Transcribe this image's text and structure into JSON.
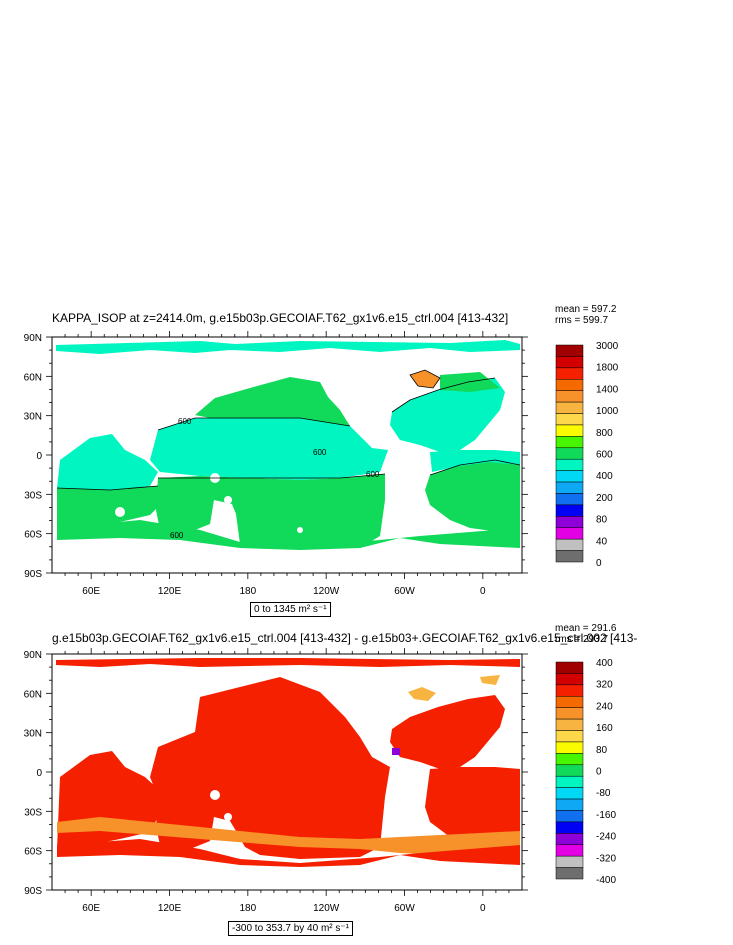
{
  "chart_data": [
    {
      "type": "heatmap",
      "title": "KAPPA_ISOP at z=2414.0m, g.e15b03p.GECOIAF.T62_gx1v6.e15_ctrl.004 [413-432]",
      "stats": {
        "mean": "mean = 597.2",
        "rms": "rms = 599.7"
      },
      "range_label": "0 to 1345 m² s⁻¹",
      "y_ticks": [
        "90N",
        "60N",
        "30N",
        "0",
        "30S",
        "60S",
        "90S"
      ],
      "x_ticks": [
        "60E",
        "120E",
        "180",
        "120W",
        "60W",
        "0"
      ],
      "ylim": [
        -90,
        90
      ],
      "xlim": [
        30,
        390
      ],
      "contour_labels": [
        "600",
        "600",
        "600",
        "600"
      ],
      "colorbar": {
        "labels": [
          "3000",
          "1800",
          "1400",
          "1000",
          "800",
          "600",
          "400",
          "200",
          "80",
          "40",
          "0"
        ],
        "colors": [
          "#a00000",
          "#d20000",
          "#f52000",
          "#f56a00",
          "#f7912a",
          "#f8b440",
          "#fcd84a",
          "#fbfb00",
          "#48f500",
          "#11d95a",
          "#00f5c0",
          "#00d8f5",
          "#0ea8f5",
          "#1070f0",
          "#0000f5",
          "#8e00d8",
          "#e400e4",
          "#c0c0c0",
          "#6e6e6e"
        ]
      }
    },
    {
      "type": "heatmap",
      "title": "g.e15b03p.GECOIAF.T62_gx1v6.e15_ctrl.004 [413-432] - g.e15b03+.GECOIAF.T62_gx1v6.e15_ctrl.002 [413-",
      "stats": {
        "mean": "mean = 291.6",
        "rms": "rms = 293.7"
      },
      "range_label": "-300 to 353.7 by 40 m² s⁻¹",
      "y_ticks": [
        "90N",
        "60N",
        "30N",
        "0",
        "30S",
        "60S",
        "90S"
      ],
      "x_ticks": [
        "60E",
        "120E",
        "180",
        "120W",
        "60W",
        "0"
      ],
      "ylim": [
        -90,
        90
      ],
      "xlim": [
        30,
        390
      ],
      "colorbar": {
        "labels": [
          "400",
          "320",
          "240",
          "160",
          "80",
          "0",
          "-80",
          "-160",
          "-240",
          "-320",
          "-400"
        ],
        "colors": [
          "#a00000",
          "#d20000",
          "#f52000",
          "#f56a00",
          "#f7912a",
          "#f8b440",
          "#fcd84a",
          "#fbfb00",
          "#48f500",
          "#11d95a",
          "#00f5c0",
          "#00d8f5",
          "#0ea8f5",
          "#1070f0",
          "#0000f5",
          "#8e00d8",
          "#e400e4",
          "#c0c0c0",
          "#6e6e6e"
        ]
      }
    }
  ]
}
